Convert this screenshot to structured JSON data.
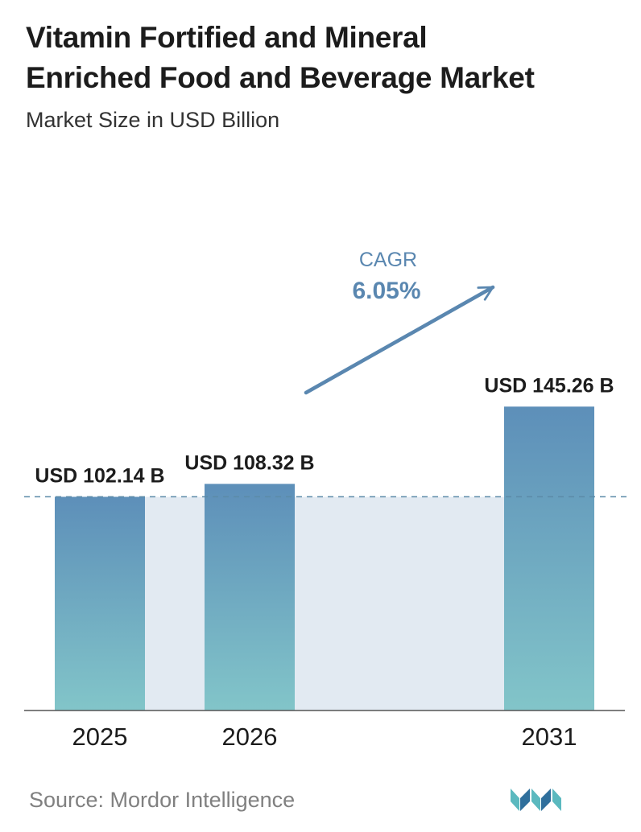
{
  "header": {
    "title_line1": "Vitamin Fortified and Mineral",
    "title_line2": "Enriched Food and Beverage Market",
    "subtitle": "Market Size in USD Billion"
  },
  "chart_data": {
    "type": "bar",
    "title": "Vitamin Fortified and Mineral Enriched Food and Beverage Market",
    "subtitle": "Market Size in USD Billion",
    "categories": [
      "2025",
      "2026",
      "2031"
    ],
    "values": [
      102.14,
      108.32,
      145.26
    ],
    "value_labels": [
      "USD 102.14 B",
      "USD 108.32 B",
      "USD 145.26 B"
    ],
    "annotation": {
      "label": "CAGR",
      "value": "6.05%"
    },
    "reference_line_value": 102.14,
    "grid": false,
    "legend": "none",
    "colors": {
      "bar_top": "#5d8fb9",
      "bar_bottom": "#82c5c9",
      "band": "#e2eaf2",
      "cagr_text": "#5a87b0",
      "arrow": "#5a87b0",
      "dashed_line": "#5b8aa8",
      "axis": "#555555",
      "value_label": "#1c1c1c",
      "tick_label": "#1c1c1c"
    }
  },
  "footer": {
    "source": "Source:  Mordor Intelligence",
    "logo": "mordor-intelligence-logo"
  }
}
